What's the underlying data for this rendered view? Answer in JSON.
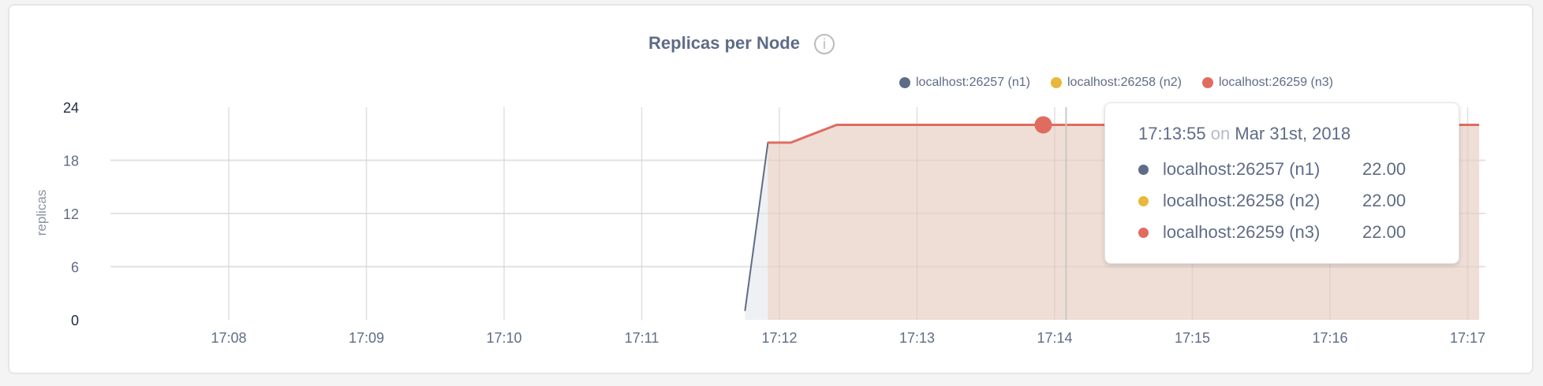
{
  "chart_data": {
    "type": "area",
    "title": "Replicas per Node",
    "ylabel": "replicas",
    "ylim": [
      0,
      24
    ],
    "yticks": [
      "0",
      "6",
      "12",
      "18",
      "24"
    ],
    "xlim": [
      "17:07:25",
      "17:17:10"
    ],
    "xticks": [
      "17:08",
      "17:09",
      "17:10",
      "17:11",
      "17:12",
      "17:13",
      "17:14",
      "17:15",
      "17:16",
      "17:17"
    ],
    "grid": true,
    "legend_placement": "top-center",
    "series": [
      {
        "name": "localhost:26257 (n1)",
        "color": "#5f6c87",
        "points": [
          [
            "17:11:45",
            1
          ],
          [
            "17:11:55",
            20
          ],
          [
            "17:12:05",
            20
          ],
          [
            "17:12:25",
            22
          ],
          [
            "17:17:05",
            22
          ]
        ]
      },
      {
        "name": "localhost:26258 (n2)",
        "color": "#e8b83a",
        "points": [
          [
            "17:11:55",
            20
          ],
          [
            "17:12:05",
            20
          ],
          [
            "17:12:25",
            22
          ],
          [
            "17:17:05",
            22
          ]
        ]
      },
      {
        "name": "localhost:26259 (n3)",
        "color": "#e06c60",
        "points": [
          [
            "17:11:55",
            20
          ],
          [
            "17:12:05",
            20
          ],
          [
            "17:12:25",
            22
          ],
          [
            "17:17:05",
            22
          ]
        ]
      }
    ],
    "hover": {
      "time": "17:13:55",
      "marker_value": 22
    }
  },
  "tooltip": {
    "time": "17:13:55",
    "on": "on",
    "date": "Mar 31st, 2018",
    "rows": [
      {
        "name": "localhost:26257 (n1)",
        "value": "22.00",
        "color": "#5f6c87"
      },
      {
        "name": "localhost:26258 (n2)",
        "value": "22.00",
        "color": "#e8b83a"
      },
      {
        "name": "localhost:26259 (n3)",
        "value": "22.00",
        "color": "#e06c60"
      }
    ]
  },
  "info_icon": "i"
}
